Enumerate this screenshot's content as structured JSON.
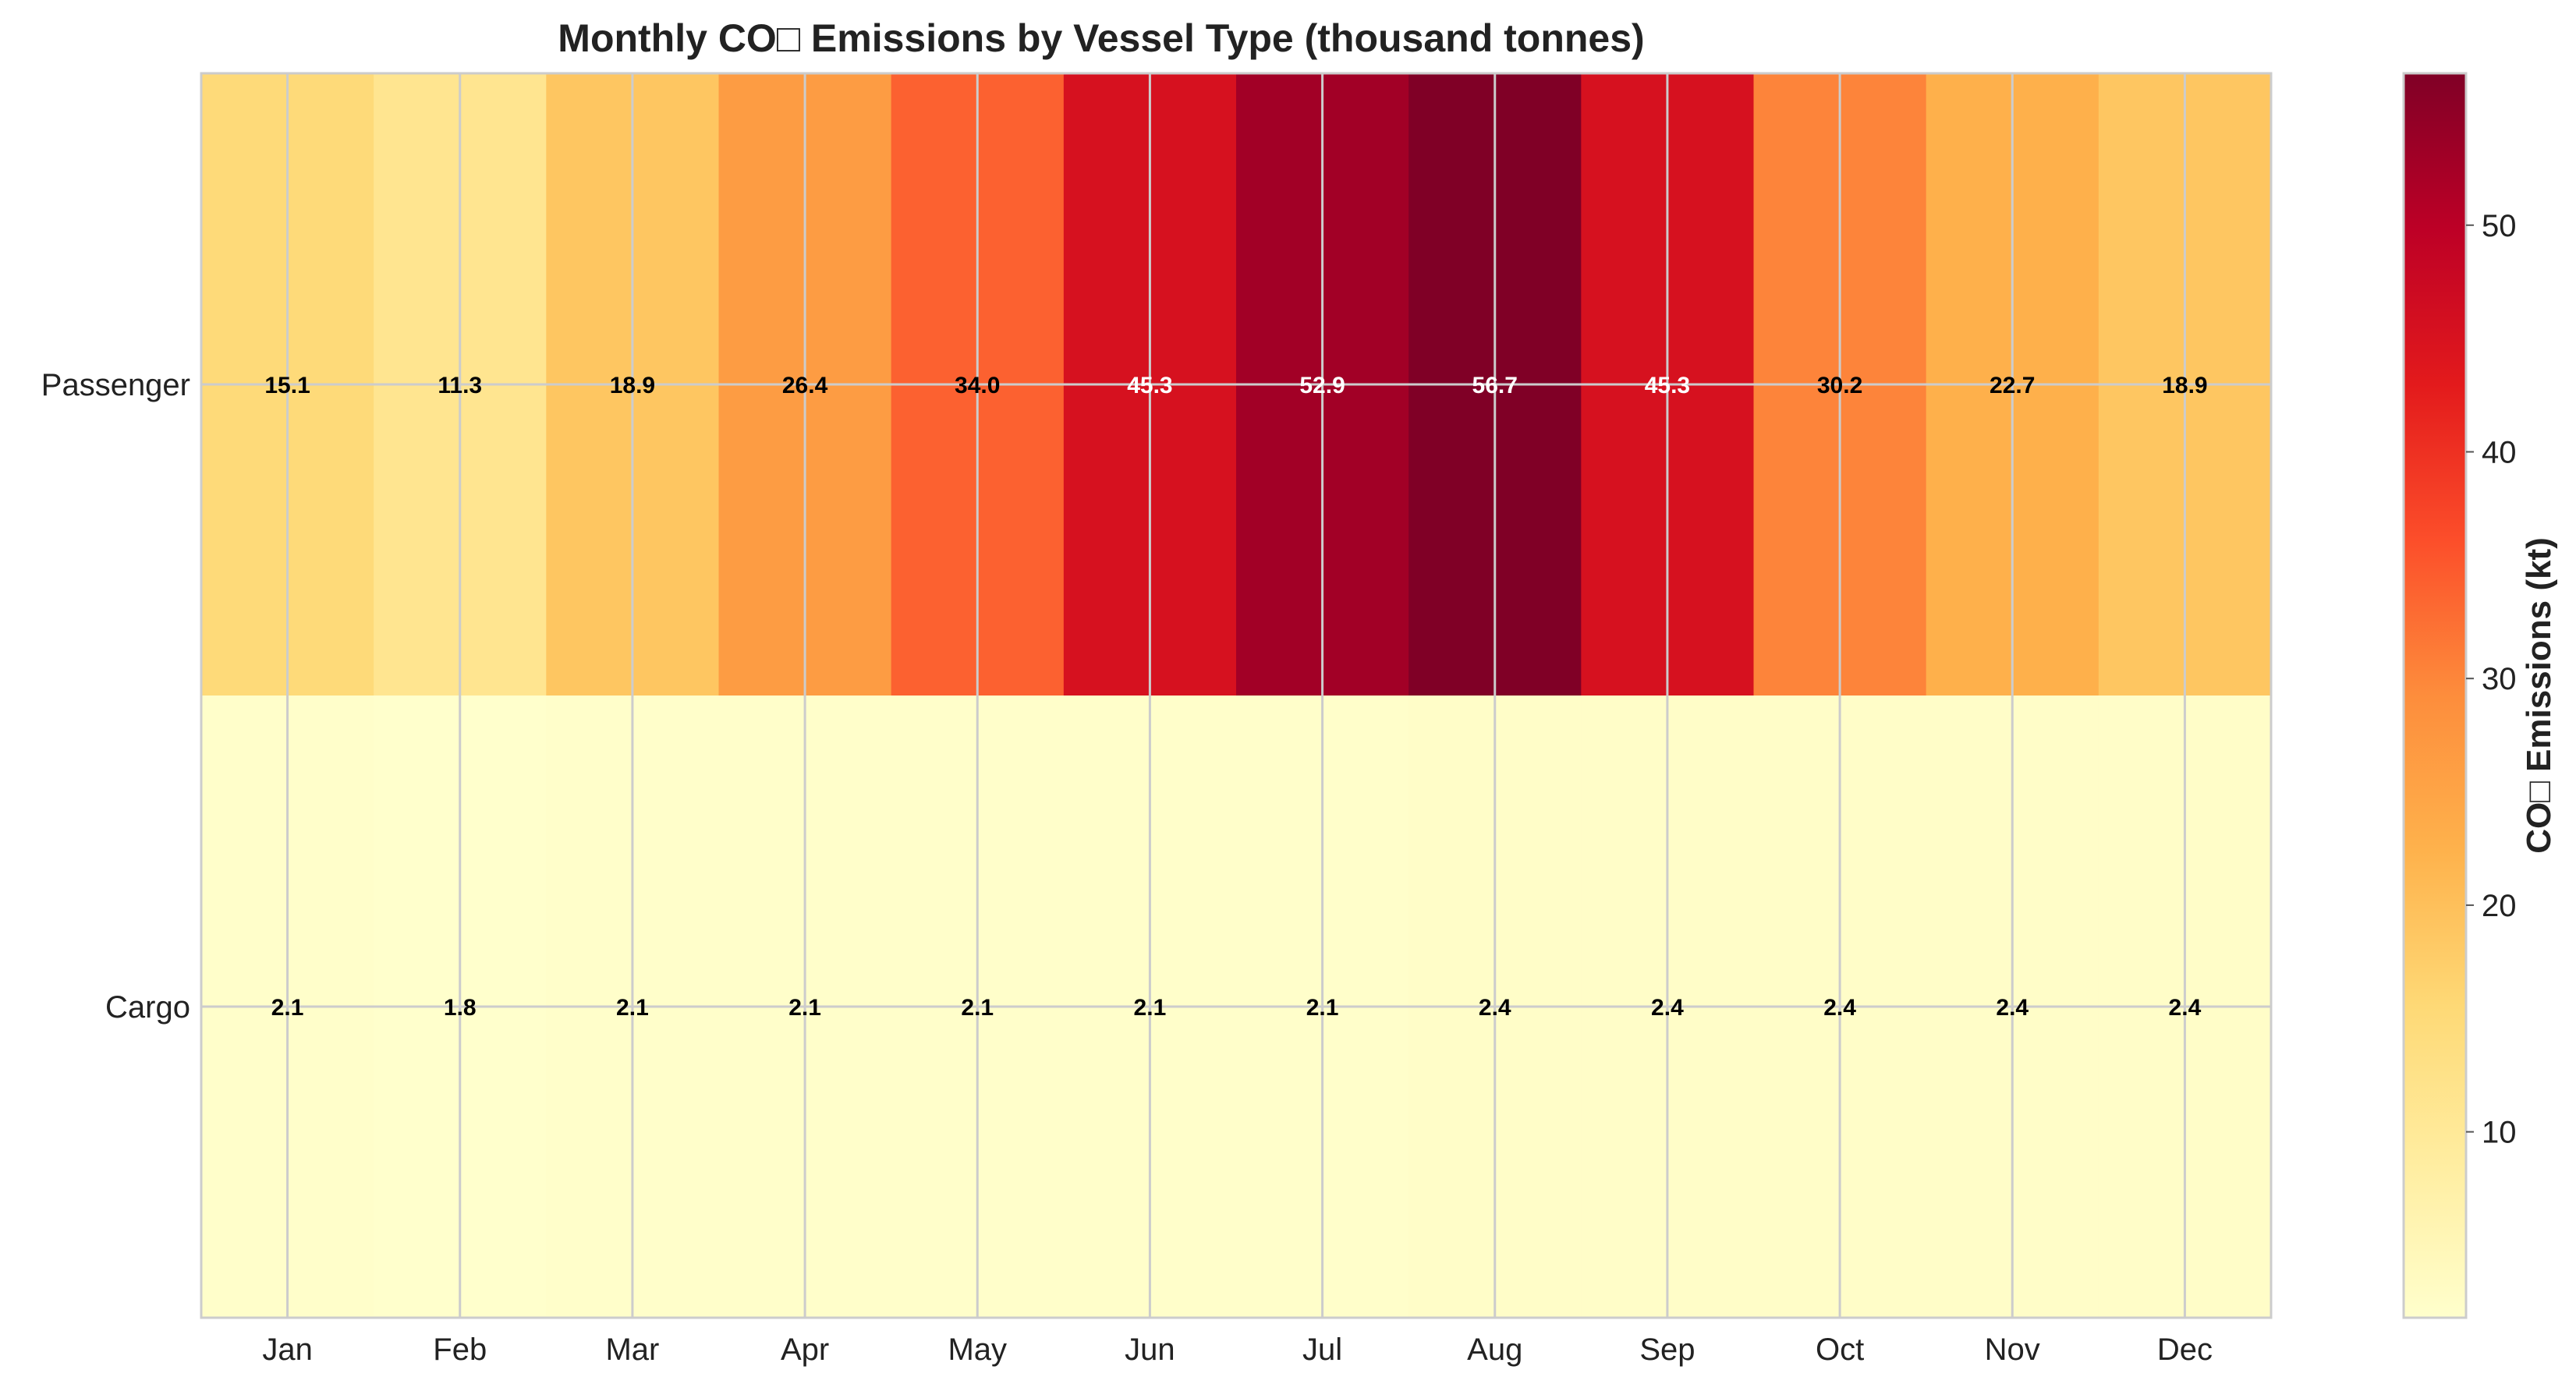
{
  "chart_data": {
    "type": "heatmap",
    "title": "Monthly CO□ Emissions by Vessel Type (thousand tonnes)",
    "x_categories": [
      "Jan",
      "Feb",
      "Mar",
      "Apr",
      "May",
      "Jun",
      "Jul",
      "Aug",
      "Sep",
      "Oct",
      "Nov",
      "Dec"
    ],
    "y_categories": [
      "Passenger",
      "Cargo"
    ],
    "series": [
      {
        "name": "Passenger",
        "values": [
          15.1,
          11.3,
          18.9,
          26.4,
          34.0,
          45.3,
          52.9,
          56.7,
          45.3,
          30.2,
          22.7,
          18.9
        ]
      },
      {
        "name": "Cargo",
        "values": [
          2.1,
          1.8,
          2.1,
          2.1,
          2.1,
          2.1,
          2.1,
          2.4,
          2.4,
          2.4,
          2.4,
          2.4
        ]
      }
    ],
    "colorbar": {
      "label": "CO□ Emissions (kt)",
      "range": [
        1.8,
        56.7
      ],
      "ticks": [
        10,
        20,
        30,
        40,
        50
      ],
      "colormap": "YlOrRd"
    },
    "grid": true
  }
}
